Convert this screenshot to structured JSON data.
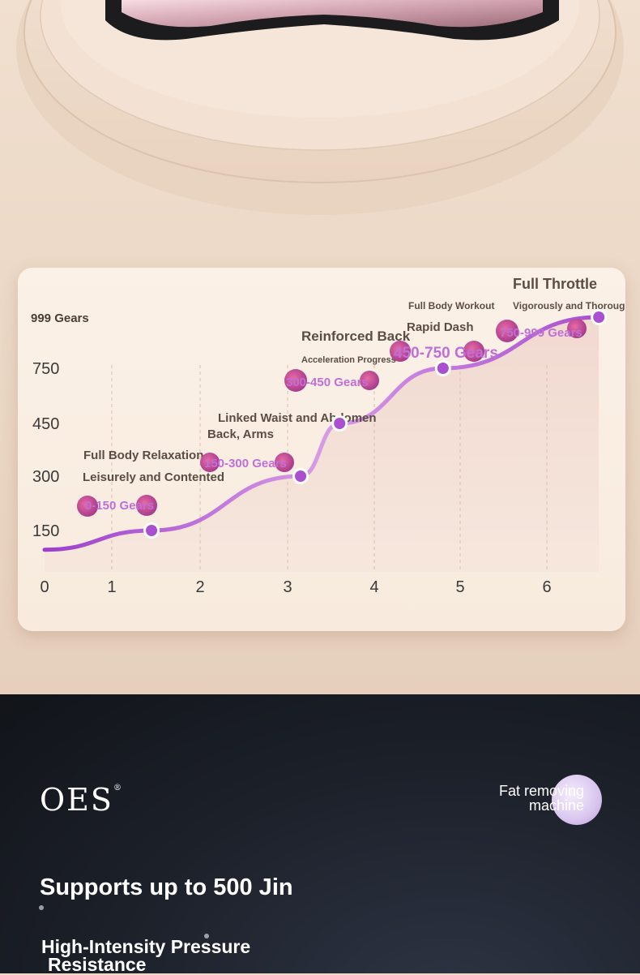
{
  "chart_data": {
    "type": "line",
    "title": "Full Throttle",
    "x_ticks": [
      "0",
      "1",
      "2",
      "3",
      "4",
      "5",
      "6"
    ],
    "y_ticks": [
      "150",
      "300",
      "450",
      "750",
      "999 Gears"
    ],
    "xlim": [
      0,
      6.7
    ],
    "ylim": [
      0,
      999
    ],
    "series": [
      {
        "x": [
          0,
          1.45,
          3.15,
          3.6,
          4.8,
          6.6
        ],
        "y": [
          80,
          150,
          300,
          450,
          750,
          999
        ]
      }
    ],
    "stages": [
      {
        "name": "Full Body Relaxation",
        "desc": "Leisurely and Contented",
        "range": "0-150 Gears"
      },
      {
        "name": "Linked Waist and Abdomen",
        "desc": "Back, Arms",
        "range": "150-300 Gears"
      },
      {
        "name": "Reinforced Back",
        "desc": "Acceleration Progress",
        "range": "300-450 Gears"
      },
      {
        "name": "Full Body Workout",
        "desc": "Rapid Dash",
        "range": "450-750 Gears"
      },
      {
        "name": "Full Throttle",
        "desc": "Vigorously and Thoroughly",
        "range": "750-999 Gears"
      }
    ]
  },
  "brand": {
    "logo": "OES",
    "reg": "®"
  },
  "product_tag": {
    "line1": "Fat removing",
    "line2": "machine"
  },
  "headline": "Supports up to 500 Jin",
  "subheadline": {
    "line1": "High-Intensity Pressure",
    "line2": "Resistance"
  },
  "colors": {
    "curve": "#a94fd0",
    "accent": "#8e2fb8",
    "pink_badge": "#d4487f"
  }
}
